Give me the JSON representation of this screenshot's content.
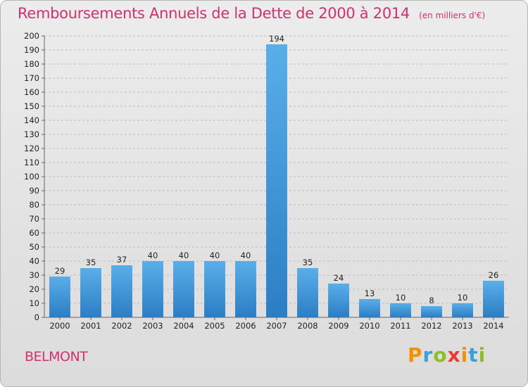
{
  "title": "Remboursements Annuels de la Dette de 2000 à 2014",
  "subtitle": "(en milliers d'€)",
  "commune": "BELMONT",
  "logo": {
    "letters": [
      "P",
      "r",
      "o",
      "x",
      "i",
      "t",
      "i"
    ],
    "colors": [
      "#f39200",
      "#3aa0d8",
      "#8cbf26",
      "#e73c2f",
      "#f39200",
      "#3aa0d8",
      "#8cbf26"
    ]
  },
  "colors": {
    "title": "#d2306f",
    "bar_light": "#5aaee8",
    "bar_dark": "#2b7ec4",
    "grid": "#bdbdbd"
  },
  "chart_data": {
    "type": "bar",
    "categories": [
      "2000",
      "2001",
      "2002",
      "2003",
      "2004",
      "2005",
      "2006",
      "2007",
      "2008",
      "2009",
      "2010",
      "2011",
      "2012",
      "2013",
      "2014"
    ],
    "values": [
      29,
      35,
      37,
      40,
      40,
      40,
      40,
      194,
      35,
      24,
      13,
      10,
      8,
      10,
      26
    ],
    "data_labels": [
      "29",
      "35",
      "37",
      "40",
      "40",
      "40",
      "40",
      "194",
      "35",
      "24",
      "13",
      "10",
      "8",
      "10",
      "26"
    ],
    "ylim": [
      0,
      200
    ],
    "yticks": [
      "0",
      "10",
      "20",
      "30",
      "40",
      "50",
      "60",
      "70",
      "80",
      "90",
      "100",
      "110",
      "120",
      "130",
      "140",
      "150",
      "160",
      "170",
      "180",
      "190",
      "200"
    ],
    "grid": true,
    "legend": "none"
  }
}
